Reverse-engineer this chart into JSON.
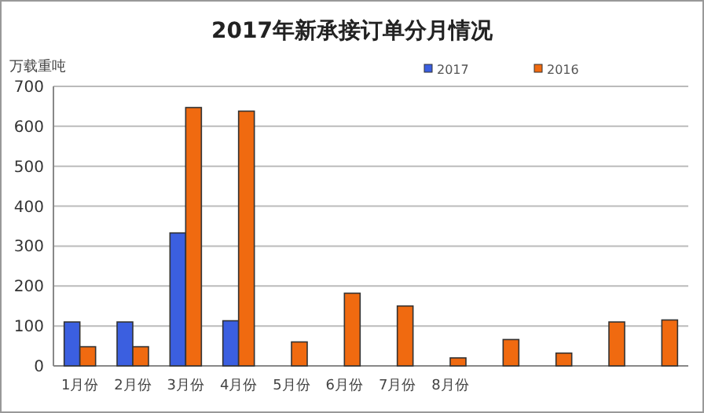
{
  "chart_data": {
    "type": "bar",
    "title": "2017年新承接订单分月情况",
    "ylabel": "万载重吨",
    "categories": [
      "1月份",
      "2月份",
      "3月份",
      "4月份",
      "5月份",
      "6月份",
      "7月份",
      "8月份",
      null,
      null,
      null,
      null
    ],
    "series": [
      {
        "name": "2017",
        "color": "#3b5fe0",
        "values": [
          110,
          110,
          333,
          113,
          null,
          null,
          null,
          null,
          null,
          null,
          null,
          null
        ]
      },
      {
        "name": "2016",
        "color": "#f06a10",
        "values": [
          48,
          48,
          647,
          638,
          60,
          182,
          150,
          20,
          66,
          32,
          110,
          115
        ]
      }
    ],
    "ylim": [
      0,
      700
    ],
    "yticks": [
      0,
      100,
      200,
      300,
      400,
      500,
      600,
      700
    ],
    "grid": "y",
    "legend": "top right"
  }
}
